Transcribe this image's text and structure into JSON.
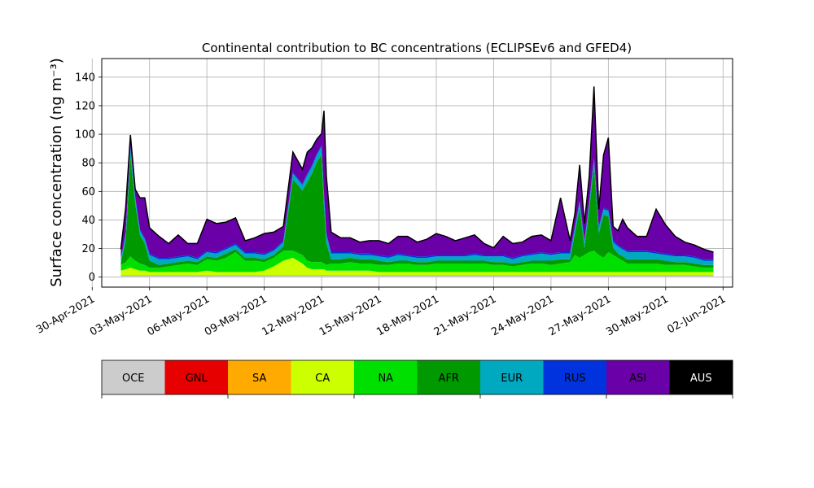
{
  "chart_data": {
    "type": "area",
    "stacked": true,
    "title": "Continental contribution to BC concentrations (ECLIPSEv6 and GFED4)",
    "ylabel": "Surface concentration (ng m⁻³)",
    "xlabel": "",
    "ylim": [
      -7,
      153
    ],
    "xlim": [
      "2021-04-30T12:00",
      "2021-06-02T12:00"
    ],
    "yticks": [
      "0",
      "20",
      "40",
      "60",
      "80",
      "100",
      "120",
      "140"
    ],
    "xticks": [
      "30-Apr-2021",
      "03-May-2021",
      "06-May-2021",
      "09-May-2021",
      "12-May-2021",
      "15-May-2021",
      "18-May-2021",
      "21-May-2021",
      "24-May-2021",
      "27-May-2021",
      "30-May-2021",
      "02-Jun-2021"
    ],
    "grid": true,
    "x": [
      "2021-05-01T12:00",
      "2021-05-01T18:00",
      "2021-05-02T00:00",
      "2021-05-02T06:00",
      "2021-05-02T12:00",
      "2021-05-02T18:00",
      "2021-05-03T00:00",
      "2021-05-03T12:00",
      "2021-05-04T00:00",
      "2021-05-04T12:00",
      "2021-05-05T00:00",
      "2021-05-05T12:00",
      "2021-05-06T00:00",
      "2021-05-06T12:00",
      "2021-05-07T00:00",
      "2021-05-07T12:00",
      "2021-05-08T00:00",
      "2021-05-08T12:00",
      "2021-05-09T00:00",
      "2021-05-09T12:00",
      "2021-05-10T00:00",
      "2021-05-10T12:00",
      "2021-05-11T00:00",
      "2021-05-11T06:00",
      "2021-05-11T12:00",
      "2021-05-11T18:00",
      "2021-05-12T00:00",
      "2021-05-12T03:00",
      "2021-05-12T06:00",
      "2021-05-12T12:00",
      "2021-05-13T00:00",
      "2021-05-13T12:00",
      "2021-05-14T00:00",
      "2021-05-14T12:00",
      "2021-05-15T00:00",
      "2021-05-15T12:00",
      "2021-05-16T00:00",
      "2021-05-16T12:00",
      "2021-05-17T00:00",
      "2021-05-17T12:00",
      "2021-05-18T00:00",
      "2021-05-18T12:00",
      "2021-05-19T00:00",
      "2021-05-19T12:00",
      "2021-05-20T00:00",
      "2021-05-20T12:00",
      "2021-05-21T00:00",
      "2021-05-21T12:00",
      "2021-05-22T00:00",
      "2021-05-22T12:00",
      "2021-05-23T00:00",
      "2021-05-23T12:00",
      "2021-05-24T00:00",
      "2021-05-24T12:00",
      "2021-05-25T00:00",
      "2021-05-25T06:00",
      "2021-05-25T12:00",
      "2021-05-25T18:00",
      "2021-05-26T00:00",
      "2021-05-26T06:00",
      "2021-05-26T12:00",
      "2021-05-26T18:00",
      "2021-05-27T00:00",
      "2021-05-27T06:00",
      "2021-05-27T12:00",
      "2021-05-27T18:00",
      "2021-05-28T00:00",
      "2021-05-28T12:00",
      "2021-05-29T00:00",
      "2021-05-29T12:00",
      "2021-05-30T00:00",
      "2021-05-30T12:00",
      "2021-05-31T00:00",
      "2021-05-31T12:00",
      "2021-06-01T00:00",
      "2021-06-01T12:00"
    ],
    "series": [
      {
        "name": "OCE",
        "color": "#cccccc",
        "values": [
          1,
          1,
          1,
          1,
          1,
          1,
          1,
          1,
          1,
          1,
          1,
          1,
          1,
          1,
          1,
          1,
          1,
          1,
          1,
          1,
          1,
          1,
          1,
          1,
          1,
          1,
          1,
          1,
          1,
          1,
          1,
          1,
          1,
          1,
          1,
          1,
          1,
          1,
          1,
          1,
          1,
          1,
          1,
          1,
          1,
          1,
          1,
          1,
          1,
          1,
          1,
          1,
          1,
          1,
          1,
          1,
          1,
          1,
          1,
          1,
          1,
          1,
          1,
          1,
          1,
          1,
          1,
          1,
          1,
          1,
          1,
          1,
          1,
          1,
          1,
          1
        ]
      },
      {
        "name": "GNL",
        "color": "#e60000",
        "values": [
          0,
          0,
          0,
          0,
          0,
          0,
          0,
          0,
          0,
          0,
          0,
          0,
          0,
          0,
          0,
          0,
          0,
          0,
          0,
          0,
          0,
          0,
          0,
          0,
          0,
          0,
          0,
          0,
          0,
          0,
          0,
          0,
          0,
          0,
          0,
          0,
          0,
          0,
          0,
          0,
          0,
          0,
          0,
          0,
          0,
          0,
          0,
          0,
          0,
          0,
          0,
          0,
          0,
          0,
          0,
          0,
          0,
          0,
          0,
          0,
          0,
          0,
          0,
          0,
          0,
          0,
          0,
          0,
          0,
          0,
          0,
          0,
          0,
          0,
          0,
          0
        ]
      },
      {
        "name": "SA",
        "color": "#ffaa00",
        "values": [
          0.5,
          0.5,
          0.5,
          0.5,
          0.5,
          0.5,
          0.5,
          0.5,
          0.5,
          0.5,
          0.5,
          0.5,
          0.5,
          0.5,
          0.5,
          0.5,
          0.5,
          0.5,
          0.5,
          0.5,
          0.5,
          0.5,
          0.5,
          0.5,
          0.5,
          0.5,
          0.5,
          0.5,
          0.5,
          0.5,
          0.5,
          0.5,
          0.5,
          0.5,
          0.5,
          0.5,
          0.5,
          0.5,
          0.5,
          0.5,
          0.5,
          0.5,
          0.5,
          0.5,
          0.5,
          0.5,
          0.5,
          0.5,
          0.5,
          0.5,
          0.5,
          0.5,
          0.5,
          0.5,
          0.5,
          0.5,
          0.5,
          0.5,
          0.5,
          0.5,
          0.5,
          0.5,
          0.5,
          0.5,
          0.5,
          0.5,
          0.5,
          0.5,
          0.5,
          0.5,
          0.5,
          0.5,
          0.5,
          0.5,
          0.5,
          0.5
        ]
      },
      {
        "name": "CA",
        "color": "#ccff00",
        "values": [
          3,
          4,
          5,
          4,
          3,
          3,
          2,
          2,
          2,
          2,
          2,
          2,
          3,
          2,
          2,
          2,
          2,
          2,
          3,
          6,
          10,
          12,
          8,
          5,
          4,
          4,
          4,
          4,
          3,
          3,
          3,
          3,
          3,
          3,
          2,
          2,
          2,
          2,
          2,
          2,
          2,
          2,
          2,
          2,
          2,
          2,
          2,
          2,
          2,
          2,
          2,
          2,
          2,
          2,
          2,
          2,
          2,
          2,
          2,
          2,
          2,
          2,
          2,
          2,
          2,
          2,
          2,
          2,
          2,
          2,
          2,
          2,
          2,
          2,
          2,
          2
        ]
      },
      {
        "name": "NA",
        "color": "#00e000",
        "values": [
          4,
          5,
          8,
          6,
          5,
          4,
          3,
          3,
          4,
          5,
          6,
          5,
          8,
          8,
          10,
          14,
          8,
          8,
          6,
          6,
          7,
          5,
          6,
          5,
          5,
          5,
          5,
          4,
          4,
          5,
          5,
          6,
          5,
          5,
          5,
          5,
          6,
          6,
          5,
          5,
          6,
          6,
          6,
          6,
          6,
          6,
          5,
          5,
          4,
          5,
          6,
          6,
          5,
          6,
          7,
          12,
          10,
          12,
          14,
          15,
          12,
          10,
          14,
          12,
          10,
          8,
          6,
          6,
          6,
          6,
          5,
          5,
          5,
          4,
          3,
          3
        ]
      },
      {
        "name": "AFR",
        "color": "#009900",
        "values": [
          2,
          15,
          70,
          40,
          20,
          15,
          5,
          2,
          2,
          2,
          2,
          2,
          2,
          2,
          3,
          2,
          2,
          2,
          2,
          2,
          3,
          50,
          45,
          55,
          62,
          70,
          75,
          40,
          15,
          3,
          3,
          3,
          3,
          3,
          3,
          2,
          2,
          2,
          2,
          2,
          2,
          2,
          2,
          2,
          2,
          2,
          2,
          2,
          2,
          2,
          2,
          2,
          3,
          3,
          2,
          15,
          35,
          5,
          30,
          60,
          15,
          30,
          25,
          5,
          3,
          3,
          3,
          3,
          3,
          3,
          3,
          2,
          2,
          2,
          2,
          2
        ]
      },
      {
        "name": "EUR",
        "color": "#00a8c0",
        "values": [
          2,
          4,
          6,
          4,
          3,
          3,
          4,
          4,
          3,
          3,
          3,
          2,
          3,
          3,
          3,
          3,
          3,
          3,
          3,
          3,
          3,
          4,
          4,
          5,
          5,
          5,
          6,
          8,
          6,
          4,
          4,
          3,
          3,
          3,
          3,
          3,
          4,
          3,
          3,
          3,
          3,
          3,
          3,
          3,
          4,
          3,
          4,
          4,
          3,
          4,
          4,
          5,
          4,
          4,
          4,
          4,
          4,
          4,
          4,
          4,
          4,
          4,
          4,
          4,
          5,
          5,
          5,
          5,
          5,
          4,
          4,
          4,
          4,
          4,
          3,
          3
        ]
      },
      {
        "name": "RUS",
        "color": "#0033dd",
        "values": [
          1,
          1,
          1,
          1,
          1,
          1,
          1,
          1,
          1,
          1,
          1,
          1,
          1,
          1,
          1,
          1,
          1,
          1,
          1,
          1,
          1,
          1,
          1,
          1,
          1,
          1,
          1,
          1,
          1,
          1,
          1,
          1,
          1,
          1,
          1,
          1,
          1,
          1,
          1,
          1,
          1,
          1,
          1,
          1,
          1,
          1,
          1,
          1,
          1,
          1,
          1,
          1,
          1,
          1,
          1,
          1,
          1,
          1,
          1,
          1,
          1,
          1,
          1,
          1,
          1,
          1,
          1,
          1,
          1,
          1,
          1,
          1,
          1,
          1,
          1,
          1
        ]
      },
      {
        "name": "ASI",
        "color": "#6a00a8",
        "values": [
          6,
          18,
          8,
          5,
          22,
          28,
          18,
          15,
          10,
          15,
          8,
          10,
          22,
          20,
          18,
          18,
          8,
          10,
          14,
          12,
          10,
          14,
          10,
          15,
          12,
          10,
          8,
          58,
          40,
          14,
          10,
          10,
          8,
          9,
          10,
          9,
          12,
          13,
          10,
          12,
          15,
          13,
          10,
          12,
          13,
          8,
          5,
          13,
          10,
          9,
          12,
          12,
          9,
          38,
          8,
          9,
          25,
          12,
          18,
          50,
          12,
          37,
          50,
          10,
          10,
          20,
          16,
          10,
          10,
          30,
          20,
          13,
          9,
          8,
          7,
          5
        ]
      },
      {
        "name": "AUS",
        "color": "#000000",
        "values": [
          0,
          0,
          0,
          0,
          0,
          0,
          0,
          0,
          0,
          0,
          0,
          0,
          0,
          0,
          0,
          0,
          0,
          0,
          0,
          0,
          0,
          0,
          0,
          0,
          0,
          0,
          0,
          0,
          0,
          0,
          0,
          0,
          0,
          0,
          0,
          0,
          0,
          0,
          0,
          0,
          0,
          0,
          0,
          0,
          0,
          0,
          0,
          0,
          0,
          0,
          0,
          0,
          0,
          0,
          0,
          0,
          0,
          0,
          0,
          0,
          0,
          0,
          0,
          0,
          0,
          0,
          0,
          0,
          0,
          0,
          0,
          0,
          0,
          0,
          0,
          0
        ]
      }
    ],
    "legend": {
      "placement": "bottom colorbar",
      "labels": [
        "OCE",
        "GNL",
        "SA",
        "CA",
        "NA",
        "AFR",
        "EUR",
        "RUS",
        "ASI",
        "AUS"
      ],
      "colors": [
        "#cccccc",
        "#e60000",
        "#ffaa00",
        "#ccff00",
        "#00e000",
        "#009900",
        "#00a8c0",
        "#0033dd",
        "#6a00a8",
        "#000000"
      ],
      "label_colors": [
        "#000000",
        "#000000",
        "#000000",
        "#000000",
        "#000000",
        "#000000",
        "#000000",
        "#000000",
        "#000000",
        "#ffffff"
      ]
    }
  }
}
